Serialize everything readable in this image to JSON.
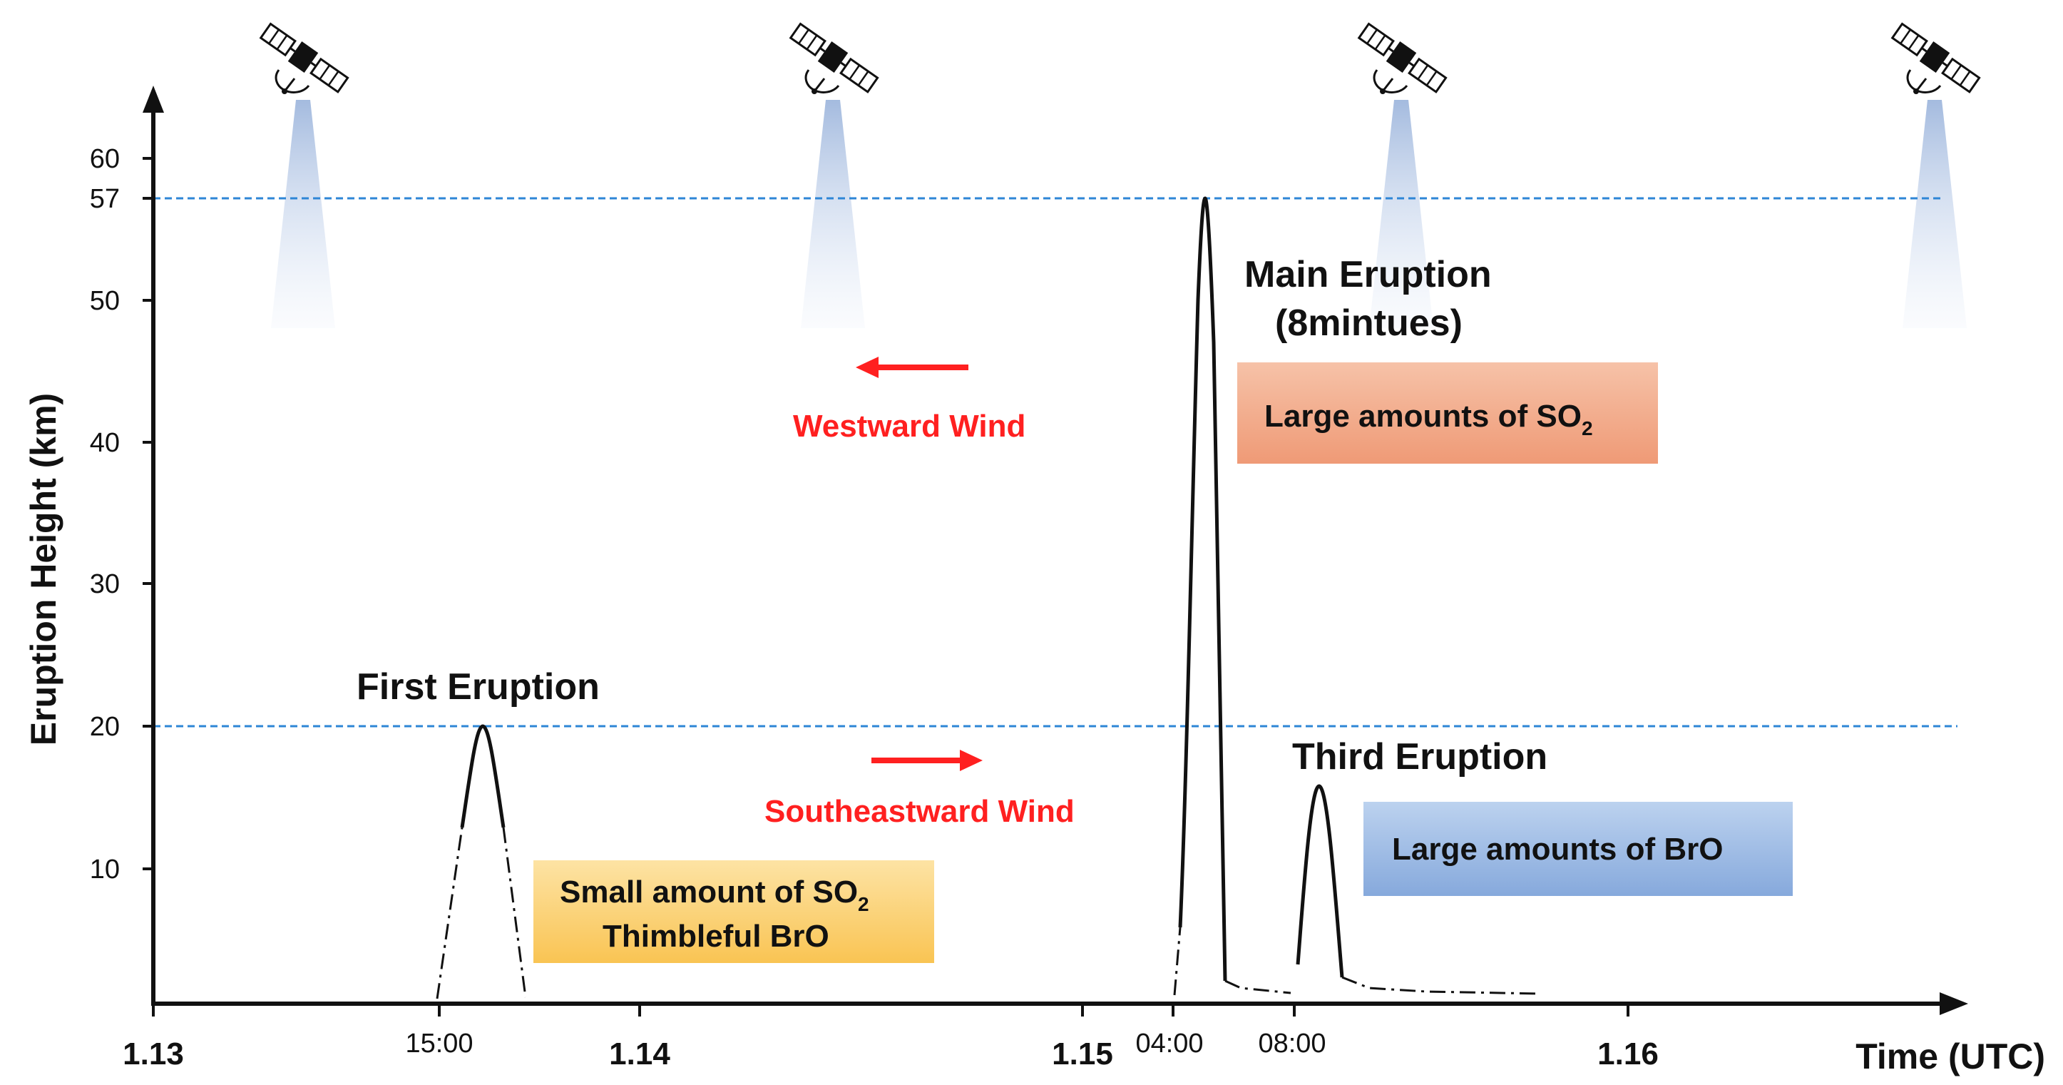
{
  "axes": {
    "y_title": "Eruption Height (km)",
    "y_ticks": [
      "10",
      "20",
      "30",
      "40",
      "50",
      "57",
      "60"
    ],
    "x_title": "Time (UTC)",
    "x_ticks_major": [
      "1.13",
      "1.14",
      "1.15",
      "1.16"
    ],
    "x_ticks_minor": [
      "15:00",
      "04:00",
      "08:00"
    ]
  },
  "reference_lines": [
    "57",
    "20"
  ],
  "eruptions": {
    "first": {
      "label": "First Eruption",
      "peak_km": 20
    },
    "main": {
      "label": "Main Eruption",
      "duration": "(8mintues)",
      "peak_km": 57
    },
    "third": {
      "label": "Third Eruption",
      "peak_km": 16
    }
  },
  "wind": {
    "westward": "Westward Wind",
    "southeastward": "Southeastward Wind"
  },
  "boxes": {
    "so2_large": {
      "text": "Large amounts of SO",
      "sub": "2",
      "color": "#f2a584"
    },
    "bro_large": {
      "text": "Large amounts of BrO",
      "color": "#9dbbe3"
    },
    "small": {
      "line1": "Small amount of SO",
      "line1_sub": "2",
      "line2": "Thimbleful  BrO",
      "color": "#fbcf73"
    }
  },
  "icons": [
    "satellite-icon",
    "satellite-icon",
    "satellite-icon",
    "satellite-icon"
  ],
  "colors": {
    "reference_line": "#2e86d6",
    "wind": "#ff2020",
    "axis": "#111111"
  }
}
